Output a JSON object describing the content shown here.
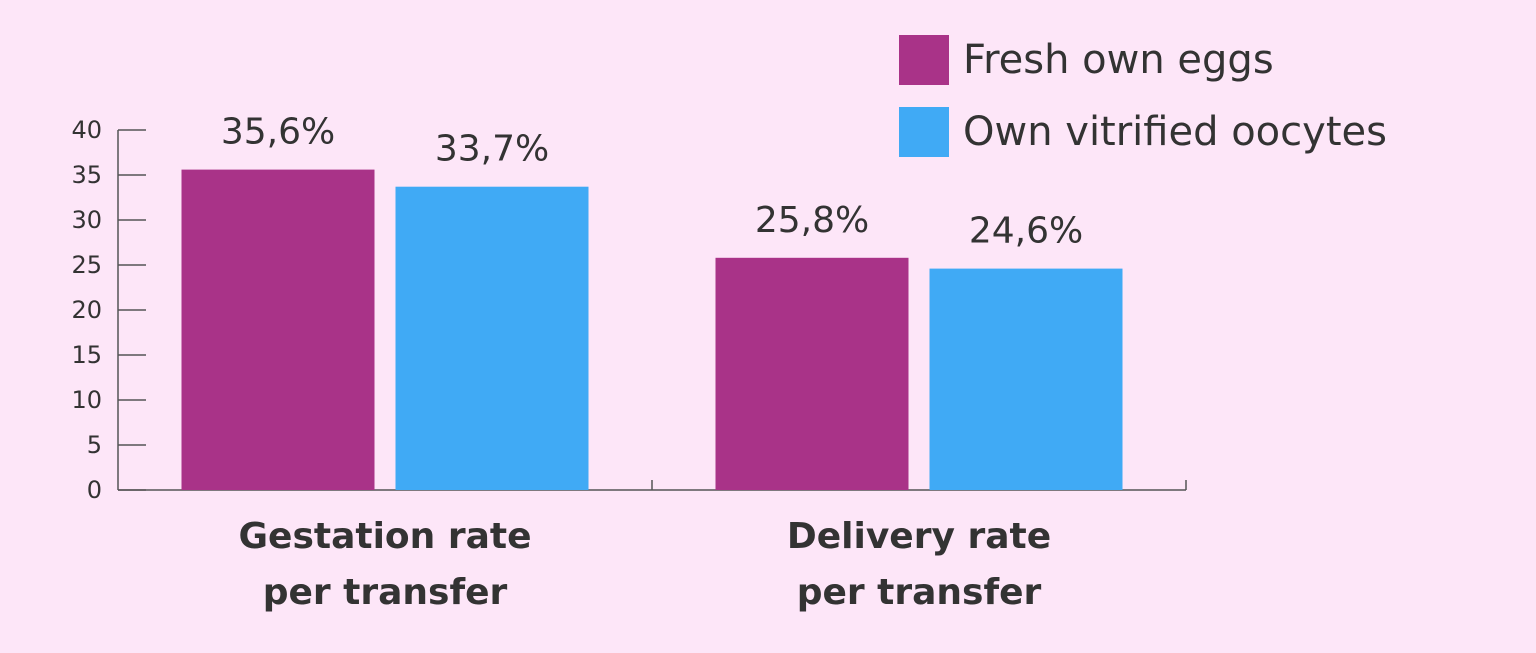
{
  "chart_data": {
    "type": "bar",
    "title": "",
    "xlabel": "",
    "ylabel": "",
    "categories": [
      [
        "Gestation rate",
        "per transfer"
      ],
      [
        "Delivery rate",
        "per transfer"
      ]
    ],
    "series": [
      {
        "name": "Fresh own eggs",
        "color": "#a93388",
        "values": [
          35.6,
          25.8
        ],
        "labels": [
          "35,6%",
          "25,8%"
        ]
      },
      {
        "name": "Own vitrified oocytes",
        "color": "#40aaf5",
        "values": [
          33.7,
          24.6
        ],
        "labels": [
          "33,7%",
          "24,6%"
        ]
      }
    ],
    "ylim": [
      0,
      40
    ],
    "yticks": [
      "0",
      "5",
      "10",
      "15",
      "20",
      "25",
      "30",
      "35",
      "40"
    ],
    "grid": false,
    "legend": "top-right"
  }
}
